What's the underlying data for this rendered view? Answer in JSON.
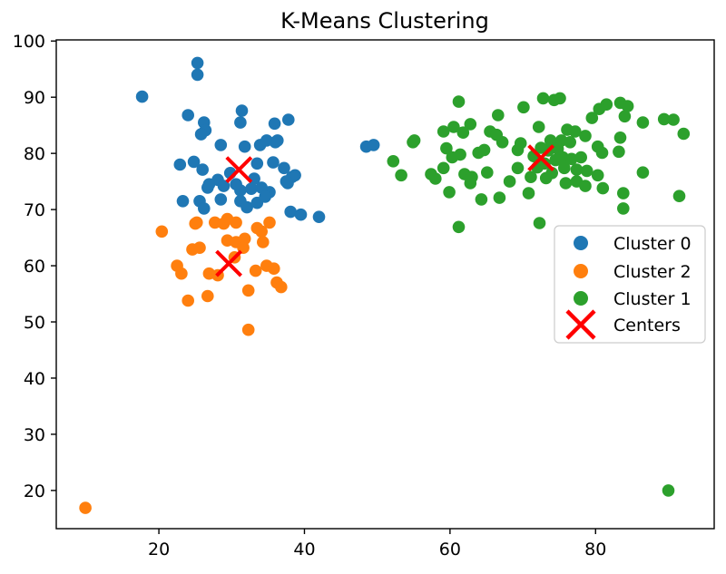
{
  "figure": {
    "background_color": "#ffffff",
    "frame_color": "#000000",
    "text_color": "#000000",
    "legend_border_color": "#cccccc",
    "legend_background_color": "#ffffff"
  },
  "chart_data": {
    "type": "scatter",
    "title": "K-Means Clustering",
    "xlabel": "",
    "ylabel": "",
    "xlim": [
      5.9,
      96.3
    ],
    "ylim": [
      13.2,
      100.2
    ],
    "xticks": [
      20,
      40,
      60,
      80
    ],
    "yticks": [
      20,
      30,
      40,
      50,
      60,
      70,
      80,
      90,
      100
    ],
    "grid": false,
    "series": [
      {
        "name": "Cluster 0",
        "color": "#1f77b4",
        "points": [
          [
            25.3,
            96.1
          ],
          [
            25.3,
            94.0
          ],
          [
            17.7,
            90.1
          ],
          [
            24.0,
            86.8
          ],
          [
            26.2,
            85.5
          ],
          [
            26.4,
            84.1
          ],
          [
            31.4,
            87.6
          ],
          [
            31.2,
            85.5
          ],
          [
            35.9,
            85.3
          ],
          [
            37.8,
            86.0
          ],
          [
            25.8,
            83.4
          ],
          [
            28.5,
            81.5
          ],
          [
            31.8,
            81.2
          ],
          [
            33.9,
            81.5
          ],
          [
            36.0,
            82.0
          ],
          [
            34.8,
            82.3
          ],
          [
            36.3,
            82.3
          ],
          [
            22.9,
            78.0
          ],
          [
            24.8,
            78.5
          ],
          [
            26.0,
            77.1
          ],
          [
            28.1,
            75.3
          ],
          [
            33.5,
            78.2
          ],
          [
            35.7,
            78.4
          ],
          [
            38.7,
            76.1
          ],
          [
            33.1,
            75.5
          ],
          [
            26.7,
            73.9
          ],
          [
            28.9,
            74.2
          ],
          [
            31.2,
            73.4
          ],
          [
            32.7,
            73.7
          ],
          [
            34.1,
            73.9
          ],
          [
            35.2,
            73.1
          ],
          [
            37.7,
            74.7
          ],
          [
            23.3,
            71.5
          ],
          [
            25.6,
            71.5
          ],
          [
            26.2,
            70.2
          ],
          [
            28.5,
            71.8
          ],
          [
            31.2,
            71.5
          ],
          [
            32.1,
            70.4
          ],
          [
            33.5,
            71.2
          ],
          [
            34.6,
            72.3
          ],
          [
            38.1,
            69.6
          ],
          [
            48.5,
            81.2
          ],
          [
            49.5,
            81.5
          ],
          [
            38.3,
            75.8
          ],
          [
            37.5,
            75.0
          ],
          [
            30.6,
            74.5
          ],
          [
            26.9,
            74.5
          ],
          [
            42.0,
            68.7
          ],
          [
            39.5,
            69.1
          ],
          [
            37.2,
            77.4
          ],
          [
            29.8,
            76.5
          ]
        ]
      },
      {
        "name": "Cluster 2",
        "color": "#ff7f0e",
        "points": [
          [
            20.4,
            66.1
          ],
          [
            25.0,
            67.5
          ],
          [
            27.7,
            67.7
          ],
          [
            28.9,
            67.5
          ],
          [
            30.6,
            67.7
          ],
          [
            34.1,
            66.1
          ],
          [
            33.5,
            66.7
          ],
          [
            35.2,
            67.7
          ],
          [
            29.4,
            68.3
          ],
          [
            25.2,
            67.7
          ],
          [
            29.4,
            64.5
          ],
          [
            30.6,
            64.2
          ],
          [
            31.8,
            64.8
          ],
          [
            34.3,
            64.2
          ],
          [
            24.6,
            62.9
          ],
          [
            25.6,
            63.2
          ],
          [
            31.6,
            63.2
          ],
          [
            22.5,
            60.0
          ],
          [
            23.1,
            58.6
          ],
          [
            26.9,
            58.6
          ],
          [
            28.1,
            58.3
          ],
          [
            33.3,
            59.1
          ],
          [
            34.8,
            60.0
          ],
          [
            35.8,
            59.5
          ],
          [
            36.2,
            57.0
          ],
          [
            36.8,
            56.2
          ],
          [
            32.3,
            55.6
          ],
          [
            26.7,
            54.6
          ],
          [
            24.0,
            53.8
          ],
          [
            32.3,
            48.6
          ],
          [
            30.4,
            61.5
          ],
          [
            9.9,
            16.9
          ]
        ]
      },
      {
        "name": "Cluster 1",
        "color": "#2ca02c",
        "points": [
          [
            52.2,
            78.6
          ],
          [
            53.3,
            76.1
          ],
          [
            54.9,
            82.0
          ],
          [
            55.1,
            82.3
          ],
          [
            57.4,
            76.3
          ],
          [
            58.0,
            75.5
          ],
          [
            59.1,
            83.9
          ],
          [
            59.1,
            77.4
          ],
          [
            59.5,
            80.9
          ],
          [
            60.3,
            79.3
          ],
          [
            60.5,
            84.7
          ],
          [
            61.2,
            89.2
          ],
          [
            61.4,
            79.8
          ],
          [
            61.8,
            83.7
          ],
          [
            62.0,
            76.3
          ],
          [
            62.8,
            85.2
          ],
          [
            63.0,
            75.8
          ],
          [
            63.9,
            80.1
          ],
          [
            64.7,
            80.6
          ],
          [
            65.1,
            76.6
          ],
          [
            65.5,
            83.9
          ],
          [
            66.4,
            83.3
          ],
          [
            66.6,
            86.8
          ],
          [
            67.2,
            82.0
          ],
          [
            68.2,
            75.0
          ],
          [
            69.3,
            80.6
          ],
          [
            69.3,
            77.4
          ],
          [
            69.7,
            81.8
          ],
          [
            70.1,
            88.2
          ],
          [
            71.1,
            75.8
          ],
          [
            72.2,
            84.7
          ],
          [
            72.8,
            89.8
          ],
          [
            74.3,
            89.5
          ],
          [
            59.9,
            73.1
          ],
          [
            62.8,
            74.7
          ],
          [
            64.3,
            71.8
          ],
          [
            66.8,
            72.1
          ],
          [
            70.8,
            72.9
          ],
          [
            61.2,
            66.9
          ],
          [
            72.3,
            67.6
          ],
          [
            75.1,
            89.8
          ],
          [
            81.5,
            88.7
          ],
          [
            83.4,
            89.0
          ],
          [
            80.5,
            87.9
          ],
          [
            84.0,
            86.6
          ],
          [
            84.4,
            88.4
          ],
          [
            86.5,
            85.5
          ],
          [
            89.4,
            86.1
          ],
          [
            90.7,
            86.0
          ],
          [
            92.1,
            83.5
          ],
          [
            79.5,
            86.3
          ],
          [
            76.1,
            84.2
          ],
          [
            77.2,
            83.9
          ],
          [
            78.6,
            83.1
          ],
          [
            75.3,
            82.3
          ],
          [
            76.5,
            82.0
          ],
          [
            80.3,
            81.2
          ],
          [
            80.9,
            80.1
          ],
          [
            83.4,
            82.8
          ],
          [
            83.2,
            80.3
          ],
          [
            75.5,
            79.3
          ],
          [
            76.7,
            79.0
          ],
          [
            78.0,
            79.3
          ],
          [
            75.7,
            77.4
          ],
          [
            77.4,
            77.1
          ],
          [
            78.8,
            76.9
          ],
          [
            80.3,
            76.1
          ],
          [
            77.4,
            75.0
          ],
          [
            75.9,
            74.7
          ],
          [
            78.6,
            74.2
          ],
          [
            86.5,
            76.6
          ],
          [
            83.8,
            72.9
          ],
          [
            83.8,
            70.2
          ],
          [
            91.5,
            72.4
          ],
          [
            81.0,
            73.8
          ],
          [
            71.5,
            79.5
          ],
          [
            72.0,
            77.5
          ],
          [
            73.0,
            78.2
          ],
          [
            73.5,
            80.5
          ],
          [
            74.0,
            76.5
          ],
          [
            74.5,
            78.8
          ],
          [
            73.8,
            82.3
          ],
          [
            72.5,
            81.0
          ],
          [
            74.8,
            80.8
          ],
          [
            73.2,
            75.6
          ],
          [
            90.0,
            20.0
          ]
        ]
      }
    ],
    "centers": {
      "name": "Centers",
      "color": "#ff0000",
      "marker": "x",
      "points": [
        [
          31.0,
          77.1
        ],
        [
          29.6,
          60.4
        ],
        [
          72.5,
          79.2
        ]
      ]
    },
    "legend": {
      "position": "center-right",
      "entries": [
        "Cluster 0",
        "Cluster 2",
        "Cluster 1",
        "Centers"
      ]
    }
  }
}
